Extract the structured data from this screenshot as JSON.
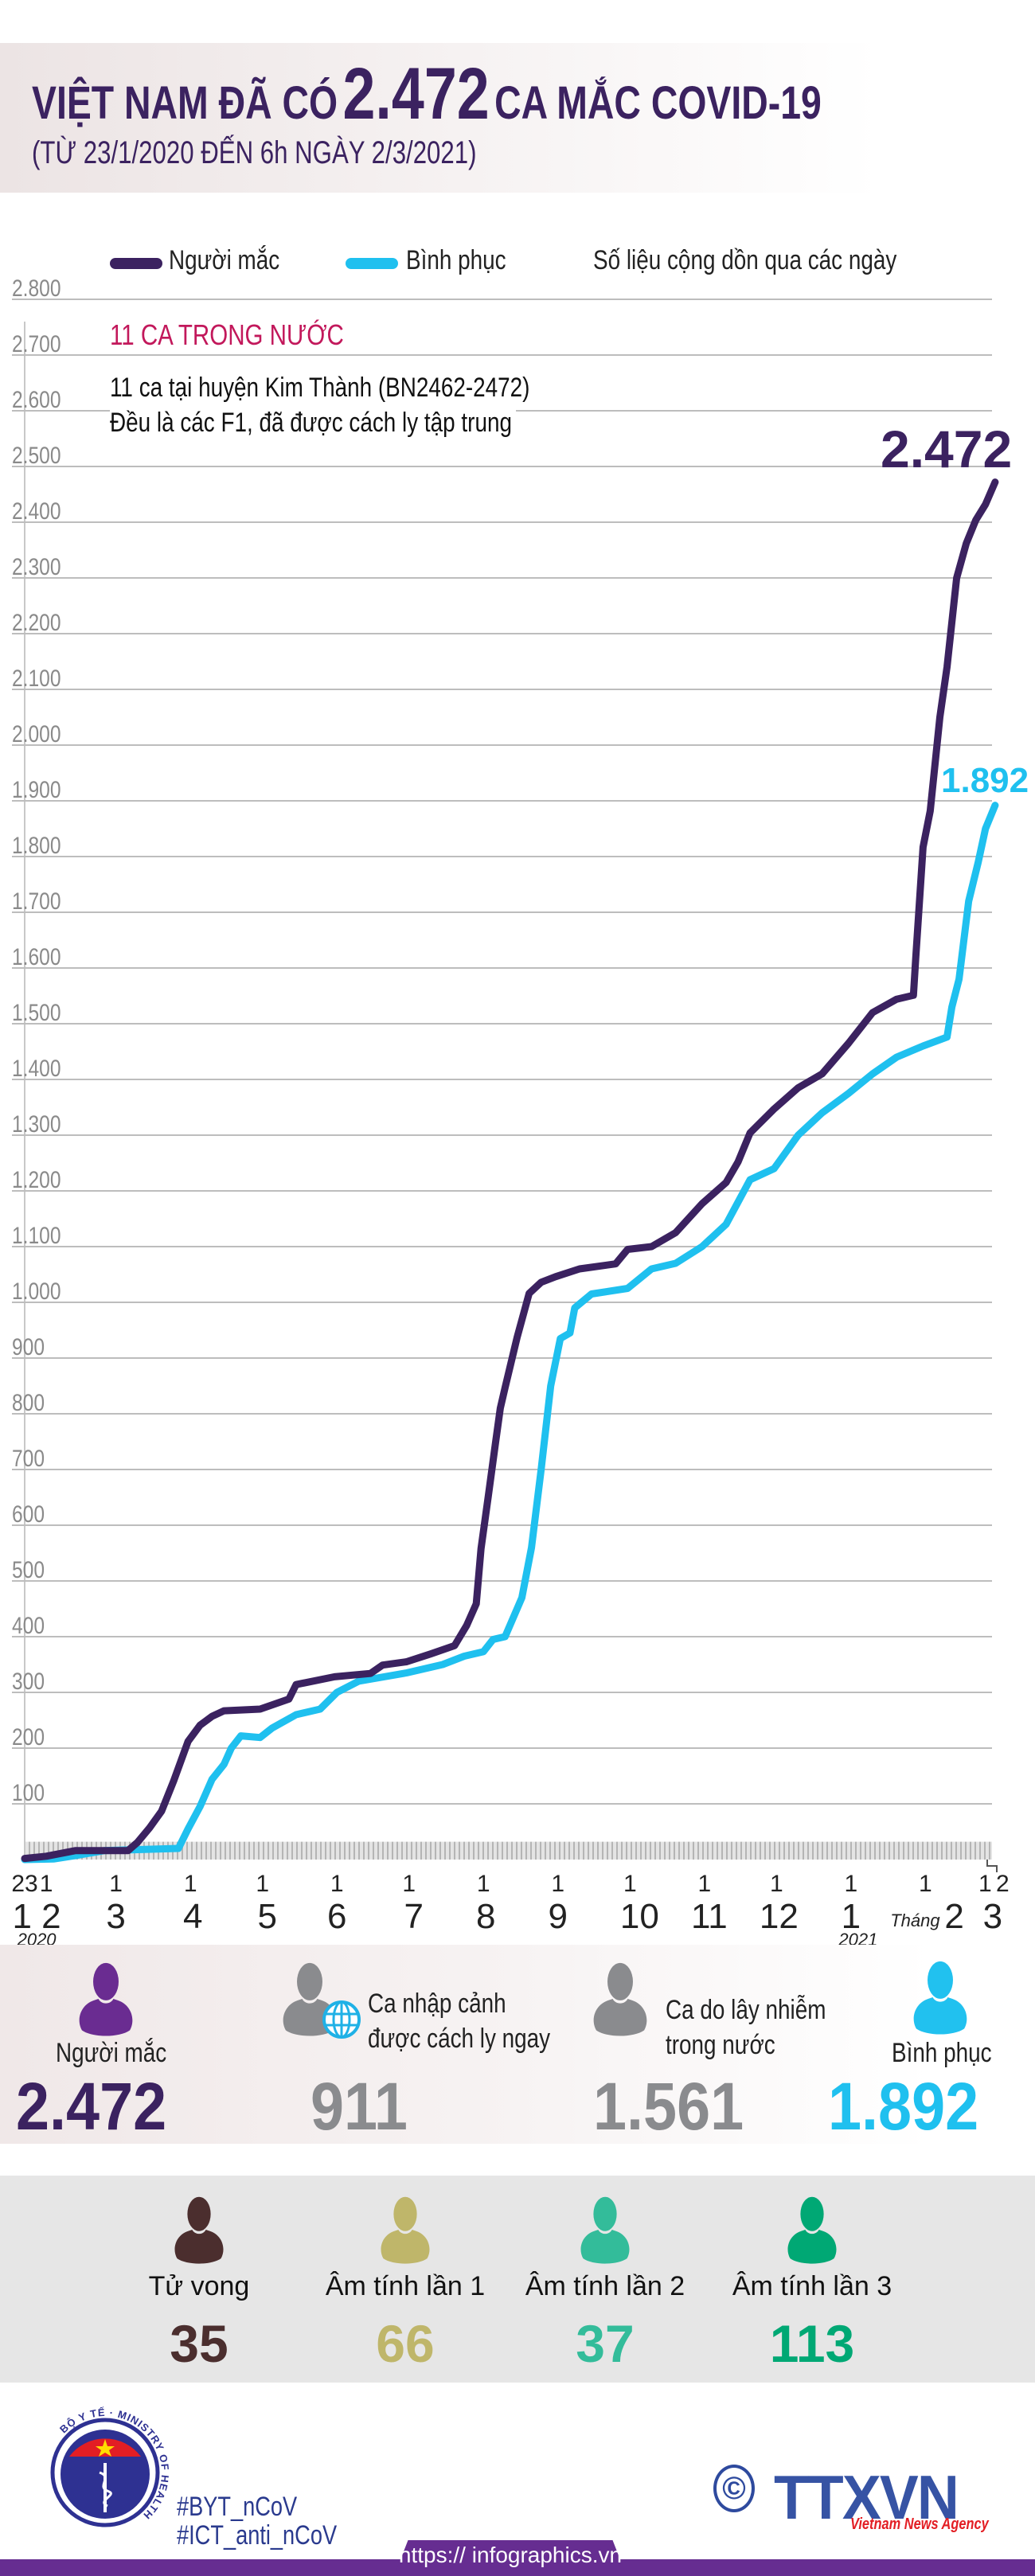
{
  "header": {
    "title_prefix": "VIỆT NAM ĐÃ CÓ",
    "title_number": "2.472",
    "title_suffix": "CA MẮC COVID-19",
    "subtitle": "(TỪ 23/1/2020 ĐẾN 6h NGÀY 2/3/2021)"
  },
  "colors": {
    "infected": "#3b2260",
    "recovered": "#1fc0ef",
    "accent": "#c2185b",
    "purple_icon": "#6a2c91",
    "grey": "#8a8b8e"
  },
  "legend": {
    "infected": "Người mắc",
    "recovered": "Bình phục",
    "note": "Số liệu cộng dồn qua các ngày"
  },
  "annotation": {
    "heading": "11 CA TRONG NƯỚC",
    "line1": "11 ca tại huyện Kim Thành (BN2462-2472)",
    "line2": "Đều là các F1, đã được cách ly tập trung"
  },
  "chart_data": {
    "type": "line",
    "title": "Số liệu cộng dồn qua các ngày",
    "xlabel": "Tháng",
    "ylabel": "",
    "ylim": [
      0,
      2800
    ],
    "yticks": [
      100,
      200,
      300,
      400,
      500,
      600,
      700,
      800,
      900,
      1000,
      1100,
      1200,
      1300,
      1400,
      1500,
      1600,
      1700,
      1800,
      1900,
      2000,
      2100,
      2200,
      2300,
      2400,
      2500,
      2600,
      2700,
      2800
    ],
    "ytick_labels": [
      "100",
      "200",
      "300",
      "400",
      "500",
      "600",
      "700",
      "800",
      "900",
      "1.000",
      "1.100",
      "1.200",
      "1.300",
      "1.400",
      "1.500",
      "1.600",
      "1.700",
      "1.800",
      "1.900",
      "2.000",
      "2.100",
      "2.200",
      "2.300",
      "2.400",
      "2.500",
      "2.600",
      "2.700",
      "2.800"
    ],
    "xrange": [
      "2020-01-23",
      "2021-03-02"
    ],
    "day_ticks": [
      {
        "date": "2020-01-23",
        "label": "23"
      },
      {
        "date": "2020-02-01",
        "label": "1"
      },
      {
        "date": "2020-03-01",
        "label": "1"
      },
      {
        "date": "2020-04-01",
        "label": "1"
      },
      {
        "date": "2020-05-01",
        "label": "1"
      },
      {
        "date": "2020-06-01",
        "label": "1"
      },
      {
        "date": "2020-07-01",
        "label": "1"
      },
      {
        "date": "2020-08-01",
        "label": "1"
      },
      {
        "date": "2020-09-01",
        "label": "1"
      },
      {
        "date": "2020-10-01",
        "label": "1"
      },
      {
        "date": "2020-11-01",
        "label": "1"
      },
      {
        "date": "2020-12-01",
        "label": "1"
      },
      {
        "date": "2021-01-01",
        "label": "1"
      },
      {
        "date": "2021-02-01",
        "label": "1"
      },
      {
        "date": "2021-03-01",
        "label": "1"
      },
      {
        "date": "2021-03-02",
        "label": "2"
      }
    ],
    "month_ticks": [
      {
        "date": "2020-01-28",
        "label": "1 2"
      },
      {
        "date": "2020-03-01",
        "label": "3"
      },
      {
        "date": "2020-04-02",
        "label": "4"
      },
      {
        "date": "2020-05-03",
        "label": "5"
      },
      {
        "date": "2020-06-01",
        "label": "6"
      },
      {
        "date": "2020-07-03",
        "label": "7"
      },
      {
        "date": "2020-08-02",
        "label": "8"
      },
      {
        "date": "2020-09-01",
        "label": "9"
      },
      {
        "date": "2020-10-05",
        "label": "10"
      },
      {
        "date": "2020-11-03",
        "label": "11"
      },
      {
        "date": "2020-12-02",
        "label": "12"
      },
      {
        "date": "2021-01-01",
        "label": "1"
      },
      {
        "date": "2021-02-13",
        "label": "2"
      },
      {
        "date": "2021-03-01",
        "label": "3"
      }
    ],
    "month_prefix": "Tháng",
    "years": [
      {
        "date": "2020-01-28",
        "label": "2020"
      },
      {
        "date": "2021-01-04",
        "label": "2021"
      }
    ],
    "series": [
      {
        "name": "Người mắc",
        "end_label": "2.472",
        "points": [
          [
            "2020-01-23",
            2
          ],
          [
            "2020-02-01",
            6
          ],
          [
            "2020-02-13",
            16
          ],
          [
            "2020-03-06",
            16
          ],
          [
            "2020-03-10",
            31
          ],
          [
            "2020-03-15",
            57
          ],
          [
            "2020-03-20",
            87
          ],
          [
            "2020-03-25",
            141
          ],
          [
            "2020-03-31",
            212
          ],
          [
            "2020-04-05",
            241
          ],
          [
            "2020-04-10",
            257
          ],
          [
            "2020-04-15",
            267
          ],
          [
            "2020-04-30",
            270
          ],
          [
            "2020-05-12",
            288
          ],
          [
            "2020-05-15",
            314
          ],
          [
            "2020-05-31",
            328
          ],
          [
            "2020-06-15",
            334
          ],
          [
            "2020-06-20",
            349
          ],
          [
            "2020-06-30",
            355
          ],
          [
            "2020-07-10",
            369
          ],
          [
            "2020-07-20",
            384
          ],
          [
            "2020-07-25",
            420
          ],
          [
            "2020-07-29",
            459
          ],
          [
            "2020-07-31",
            558
          ],
          [
            "2020-08-03",
            652
          ],
          [
            "2020-08-06",
            747
          ],
          [
            "2020-08-08",
            810
          ],
          [
            "2020-08-10",
            847
          ],
          [
            "2020-08-15",
            937
          ],
          [
            "2020-08-20",
            1016
          ],
          [
            "2020-08-25",
            1036
          ],
          [
            "2020-08-31",
            1046
          ],
          [
            "2020-09-10",
            1060
          ],
          [
            "2020-09-25",
            1069
          ],
          [
            "2020-09-30",
            1095
          ],
          [
            "2020-10-10",
            1100
          ],
          [
            "2020-10-20",
            1125
          ],
          [
            "2020-10-31",
            1177
          ],
          [
            "2020-11-10",
            1215
          ],
          [
            "2020-11-15",
            1252
          ],
          [
            "2020-11-20",
            1304
          ],
          [
            "2020-11-30",
            1347
          ],
          [
            "2020-12-10",
            1385
          ],
          [
            "2020-12-20",
            1410
          ],
          [
            "2020-12-31",
            1465
          ],
          [
            "2021-01-10",
            1520
          ],
          [
            "2021-01-20",
            1544
          ],
          [
            "2021-01-27",
            1551
          ],
          [
            "2021-01-28",
            1620
          ],
          [
            "2021-01-31",
            1817
          ],
          [
            "2021-02-03",
            1882
          ],
          [
            "2021-02-07",
            2050
          ],
          [
            "2021-02-10",
            2140
          ],
          [
            "2021-02-14",
            2300
          ],
          [
            "2021-02-18",
            2362
          ],
          [
            "2021-02-22",
            2404
          ],
          [
            "2021-02-26",
            2432
          ],
          [
            "2021-03-02",
            2472
          ]
        ]
      },
      {
        "name": "Bình phục",
        "end_label": "1.892",
        "points": [
          [
            "2020-01-23",
            0
          ],
          [
            "2020-02-04",
            1
          ],
          [
            "2020-02-13",
            7
          ],
          [
            "2020-02-25",
            16
          ],
          [
            "2020-03-27",
            20
          ],
          [
            "2020-03-31",
            55
          ],
          [
            "2020-04-05",
            95
          ],
          [
            "2020-04-10",
            144
          ],
          [
            "2020-04-15",
            171
          ],
          [
            "2020-04-18",
            200
          ],
          [
            "2020-04-22",
            222
          ],
          [
            "2020-04-30",
            219
          ],
          [
            "2020-05-05",
            236
          ],
          [
            "2020-05-15",
            260
          ],
          [
            "2020-05-25",
            270
          ],
          [
            "2020-06-01",
            300
          ],
          [
            "2020-06-10",
            320
          ],
          [
            "2020-06-30",
            335
          ],
          [
            "2020-07-15",
            350
          ],
          [
            "2020-07-24",
            365
          ],
          [
            "2020-08-01",
            373
          ],
          [
            "2020-08-05",
            395
          ],
          [
            "2020-08-10",
            400
          ],
          [
            "2020-08-17",
            470
          ],
          [
            "2020-08-21",
            560
          ],
          [
            "2020-08-25",
            700
          ],
          [
            "2020-08-29",
            850
          ],
          [
            "2020-09-02",
            935
          ],
          [
            "2020-09-06",
            945
          ],
          [
            "2020-09-08",
            990
          ],
          [
            "2020-09-15",
            1015
          ],
          [
            "2020-09-30",
            1025
          ],
          [
            "2020-10-10",
            1060
          ],
          [
            "2020-10-20",
            1070
          ],
          [
            "2020-10-31",
            1100
          ],
          [
            "2020-11-10",
            1140
          ],
          [
            "2020-11-20",
            1220
          ],
          [
            "2020-11-30",
            1240
          ],
          [
            "2020-12-10",
            1300
          ],
          [
            "2020-12-20",
            1340
          ],
          [
            "2020-12-31",
            1375
          ],
          [
            "2021-01-10",
            1410
          ],
          [
            "2021-01-20",
            1440
          ],
          [
            "2021-01-31",
            1460
          ],
          [
            "2021-02-10",
            1476
          ],
          [
            "2021-02-12",
            1530
          ],
          [
            "2021-02-15",
            1580
          ],
          [
            "2021-02-19",
            1720
          ],
          [
            "2021-02-23",
            1790
          ],
          [
            "2021-02-26",
            1850
          ],
          [
            "2021-03-02",
            1892
          ]
        ]
      }
    ]
  },
  "stats": [
    {
      "label": "Người mắc",
      "value": "2.472",
      "color": "#3b2260"
    },
    {
      "label_line1": "Ca nhập cảnh",
      "label_line2": "được cách ly ngay",
      "value": "911",
      "color": "#8a8b8e"
    },
    {
      "label_line1": "Ca do lây nhiễm",
      "label_line2": "trong nước",
      "value": "1.561",
      "color": "#8a8b8e"
    },
    {
      "label": "Bình phục",
      "value": "1.892",
      "color": "#1fc0ef"
    }
  ],
  "sub_stats": [
    {
      "label": "Tử vong",
      "value": "35",
      "color": "#4b2e2e"
    },
    {
      "label": "Âm tính lần 1",
      "value": "66",
      "color": "#bfb66a"
    },
    {
      "label": "Âm tính lần 2",
      "value": "37",
      "color": "#33bc9a"
    },
    {
      "label": "Âm tính lần 3",
      "value": "113",
      "color": "#00a874"
    }
  ],
  "footer": {
    "ministry_logo_text": "BỘ Y TẾ · MINISTRY OF HEALTH",
    "hashtag1": "#BYT_nCoV",
    "hashtag2": "#ICT_anti_nCoV",
    "copyright_symbol": "©",
    "agency_logo": "TTXVN",
    "agency_name": "Vietnam News Agency",
    "url": "https:// infographics.vn"
  }
}
